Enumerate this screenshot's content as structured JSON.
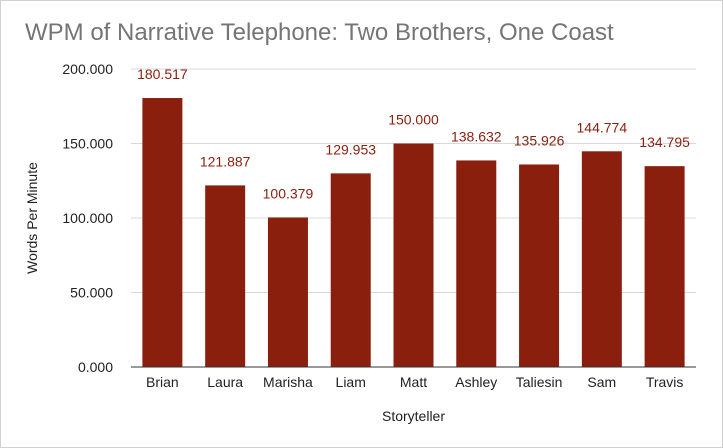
{
  "chart_data": {
    "type": "bar",
    "title": "WPM of Narrative Telephone: Two Brothers, One Coast",
    "xlabel": "Storyteller",
    "ylabel": "Words Per Minute",
    "categories": [
      "Brian",
      "Laura",
      "Marisha",
      "Liam",
      "Matt",
      "Ashley",
      "Taliesin",
      "Sam",
      "Travis"
    ],
    "values": [
      180.517,
      121.887,
      100.379,
      129.953,
      150.0,
      138.632,
      135.926,
      144.774,
      134.795
    ],
    "value_labels": [
      "180.517",
      "121.887",
      "100.379",
      "129.953",
      "150.000",
      "138.632",
      "135.926",
      "144.774",
      "134.795"
    ],
    "y_ticks": [
      0,
      50,
      100,
      150,
      200
    ],
    "y_tick_labels": [
      "0.000",
      "50.000",
      "100.000",
      "150.000",
      "200.000"
    ],
    "ylim": [
      0,
      200
    ],
    "grid": true,
    "legend": "none",
    "colors": {
      "bar": "#8b1f0e",
      "data_label": "#8b1f0e",
      "title": "#757575",
      "grid": "#d9d9d9",
      "baseline": "#333333"
    }
  }
}
